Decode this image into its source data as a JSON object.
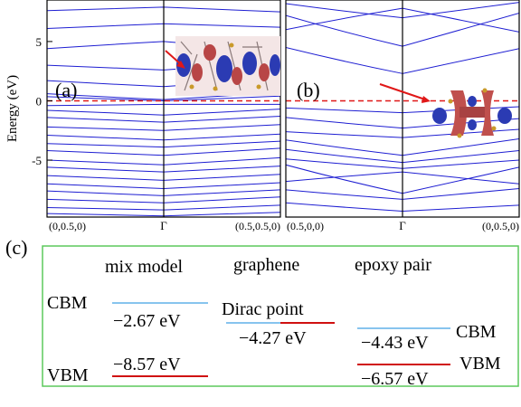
{
  "chart_data": [
    {
      "type": "line",
      "panel_label": "(a)",
      "ylabel": "Energy (eV)",
      "ylim": [
        -9.8,
        8.5
      ],
      "yticks": [
        -5,
        0,
        5
      ],
      "xtick_labels": [
        "(0,0.5,0)",
        "Γ",
        "(0.5,0.5,0)"
      ],
      "fermi_level": 0,
      "inset": "charge-density isosurface structure",
      "series": [
        {
          "x": [
            0,
            0.5,
            1
          ],
          "values": [
            7.6,
            7.9,
            7.5
          ]
        },
        {
          "x": [
            0,
            0.5,
            1
          ],
          "values": [
            6.1,
            6.5,
            6.2
          ]
        },
        {
          "x": [
            0,
            0.5,
            1
          ],
          "values": [
            4.4,
            5.0,
            4.2
          ]
        },
        {
          "x": [
            0,
            0.5,
            1
          ],
          "values": [
            3.0,
            2.6,
            3.3
          ]
        },
        {
          "x": [
            0,
            0.5,
            1
          ],
          "values": [
            1.7,
            1.2,
            1.9
          ]
        },
        {
          "x": [
            0,
            0.5,
            1
          ],
          "values": [
            0.6,
            0.1,
            0.7
          ]
        },
        {
          "x": [
            0,
            0.5,
            1
          ],
          "values": [
            0.35,
            0.0,
            0.4
          ]
        },
        {
          "x": [
            0,
            0.5,
            1
          ],
          "values": [
            -0.4,
            -0.3,
            -0.3
          ]
        },
        {
          "x": [
            0,
            0.5,
            1
          ],
          "values": [
            -0.8,
            -1.2,
            -0.7
          ]
        },
        {
          "x": [
            0,
            0.5,
            1
          ],
          "values": [
            -1.4,
            -1.8,
            -1.3
          ]
        },
        {
          "x": [
            0,
            0.5,
            1
          ],
          "values": [
            -2.2,
            -2.5,
            -2.0
          ]
        },
        {
          "x": [
            0,
            0.5,
            1
          ],
          "values": [
            -2.9,
            -3.3,
            -2.8
          ]
        },
        {
          "x": [
            0,
            0.5,
            1
          ],
          "values": [
            -3.6,
            -3.9,
            -3.4
          ]
        },
        {
          "x": [
            0,
            0.5,
            1
          ],
          "values": [
            -4.2,
            -4.6,
            -4.0
          ]
        },
        {
          "x": [
            0,
            0.5,
            1
          ],
          "values": [
            -5.0,
            -5.4,
            -4.8
          ]
        },
        {
          "x": [
            0,
            0.5,
            1
          ],
          "values": [
            -5.6,
            -6.0,
            -5.5
          ]
        },
        {
          "x": [
            0,
            0.5,
            1
          ],
          "values": [
            -6.3,
            -6.7,
            -6.2
          ]
        },
        {
          "x": [
            0,
            0.5,
            1
          ],
          "values": [
            -7.0,
            -7.4,
            -6.9
          ]
        },
        {
          "x": [
            0,
            0.5,
            1
          ],
          "values": [
            -7.6,
            -8.0,
            -7.5
          ]
        },
        {
          "x": [
            0,
            0.5,
            1
          ],
          "values": [
            -8.3,
            -8.6,
            -8.1
          ]
        },
        {
          "x": [
            0,
            0.5,
            1
          ],
          "values": [
            -9.0,
            -9.2,
            -8.8
          ]
        },
        {
          "x": [
            0,
            0.5,
            1
          ],
          "values": [
            -9.5,
            -9.7,
            -9.4
          ]
        }
      ]
    },
    {
      "type": "line",
      "panel_label": "(b)",
      "ylim": [
        -9.8,
        8.5
      ],
      "xtick_labels": [
        "(0.5,0,0)",
        "Γ",
        "(0,0.5,0)"
      ],
      "fermi_level": 0,
      "inset": "epoxy pair isosurface structure",
      "series": [
        {
          "x": [
            0,
            0.5,
            1
          ],
          "values": [
            8.2,
            7.0,
            8.3
          ]
        },
        {
          "x": [
            0,
            0.5,
            1
          ],
          "values": [
            6.0,
            7.8,
            5.8
          ]
        },
        {
          "x": [
            0,
            0.5,
            1
          ],
          "values": [
            7.2,
            4.6,
            7.4
          ]
        },
        {
          "x": [
            0,
            0.5,
            1
          ],
          "values": [
            4.5,
            2.3,
            4.4
          ]
        },
        {
          "x": [
            0,
            0.5,
            1
          ],
          "values": [
            -0.6,
            -1.0,
            -0.5
          ]
        },
        {
          "x": [
            0,
            0.5,
            1
          ],
          "values": [
            -1.4,
            -2.3,
            -1.5
          ]
        },
        {
          "x": [
            0,
            0.5,
            1
          ],
          "values": [
            -2.6,
            -3.1,
            -2.4
          ]
        },
        {
          "x": [
            0,
            0.5,
            1
          ],
          "values": [
            -3.3,
            -4.6,
            -3.2
          ]
        },
        {
          "x": [
            0,
            0.5,
            1
          ],
          "values": [
            -4.1,
            -5.2,
            -4.2
          ]
        },
        {
          "x": [
            0,
            0.5,
            1
          ],
          "values": [
            -4.9,
            -5.7,
            -5.0
          ]
        },
        {
          "x": [
            0,
            0.5,
            1
          ],
          "values": [
            -6.8,
            -6.0,
            -7.0
          ]
        },
        {
          "x": [
            0,
            0.5,
            1
          ],
          "values": [
            -5.4,
            -7.8,
            -5.6
          ]
        },
        {
          "x": [
            0,
            0.5,
            1
          ],
          "values": [
            -7.5,
            -8.3,
            -7.4
          ]
        },
        {
          "x": [
            0,
            0.5,
            1
          ],
          "values": [
            -8.6,
            -9.3,
            -8.8
          ]
        }
      ]
    },
    {
      "type": "diagram",
      "panel_label": "(c)",
      "columns": [
        "mix model",
        "graphene",
        "epoxy pair"
      ],
      "levels": [
        {
          "group": "mix model",
          "name": "CBM",
          "value_text": "−2.67 eV",
          "color": "#87c4ee"
        },
        {
          "group": "mix model",
          "name": "VBM",
          "value_text": "−8.57 eV",
          "color": "#d01010"
        },
        {
          "group": "graphene",
          "name": "Dirac point",
          "value_text": "−4.27 eV",
          "colors": [
            "#87c4ee",
            "#d01010"
          ]
        },
        {
          "group": "epoxy pair",
          "name": "CBM",
          "value_text": "−4.43 eV",
          "color": "#87c4ee"
        },
        {
          "group": "epoxy pair",
          "name": "VBM",
          "value_text": "−6.57 eV",
          "color": "#d01010"
        }
      ]
    }
  ],
  "colors": {
    "band": "#1e1ed2",
    "fermi": "#e01818",
    "cbm": "#87c4ee",
    "vbm": "#d01010",
    "frame_c": "#5cc85c"
  }
}
